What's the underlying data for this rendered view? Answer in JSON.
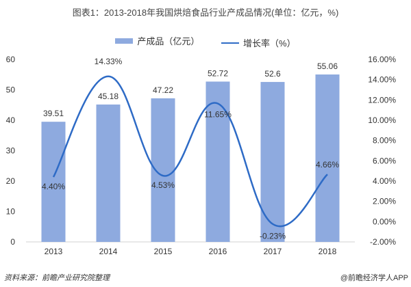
{
  "chart_data": {
    "type": "bar+line",
    "title": "图表1：2013-2018年我国烘焙食品行业产成品情况(单位：亿元，%)",
    "categories": [
      "2013",
      "2014",
      "2015",
      "2016",
      "2017",
      "2018"
    ],
    "series": [
      {
        "name": "产成品（亿元）",
        "type": "bar",
        "axis": "left",
        "values": [
          39.51,
          45.18,
          47.22,
          52.72,
          52.6,
          55.06
        ],
        "labels": [
          "39.51",
          "45.18",
          "47.22",
          "52.72",
          "52.6",
          "55.06"
        ]
      },
      {
        "name": "增长率（%）",
        "type": "line",
        "smooth": true,
        "axis": "right",
        "values": [
          4.4,
          14.33,
          4.53,
          11.65,
          -0.23,
          4.66
        ],
        "labels": [
          "4.40%",
          "14.33%",
          "4.53%",
          "11.65%",
          "-0.23%",
          "4.66%"
        ]
      }
    ],
    "left_axis": {
      "ylim": [
        0,
        60
      ],
      "ticks": [
        "0",
        "10",
        "20",
        "30",
        "40",
        "50",
        "60"
      ]
    },
    "right_axis": {
      "ylim": [
        -2,
        16
      ],
      "ticks": [
        "-2.00%",
        "0.00%",
        "2.00%",
        "4.00%",
        "6.00%",
        "8.00%",
        "10.00%",
        "12.00%",
        "14.00%",
        "16.00%"
      ]
    },
    "grid": false,
    "legend": "top-center",
    "colors": {
      "bar": "#8eaadf",
      "line": "#2e6bc6"
    }
  },
  "footer": {
    "source": "资料来源：前瞻产业研究院整理",
    "credit": "@前瞻经济学人APP"
  }
}
